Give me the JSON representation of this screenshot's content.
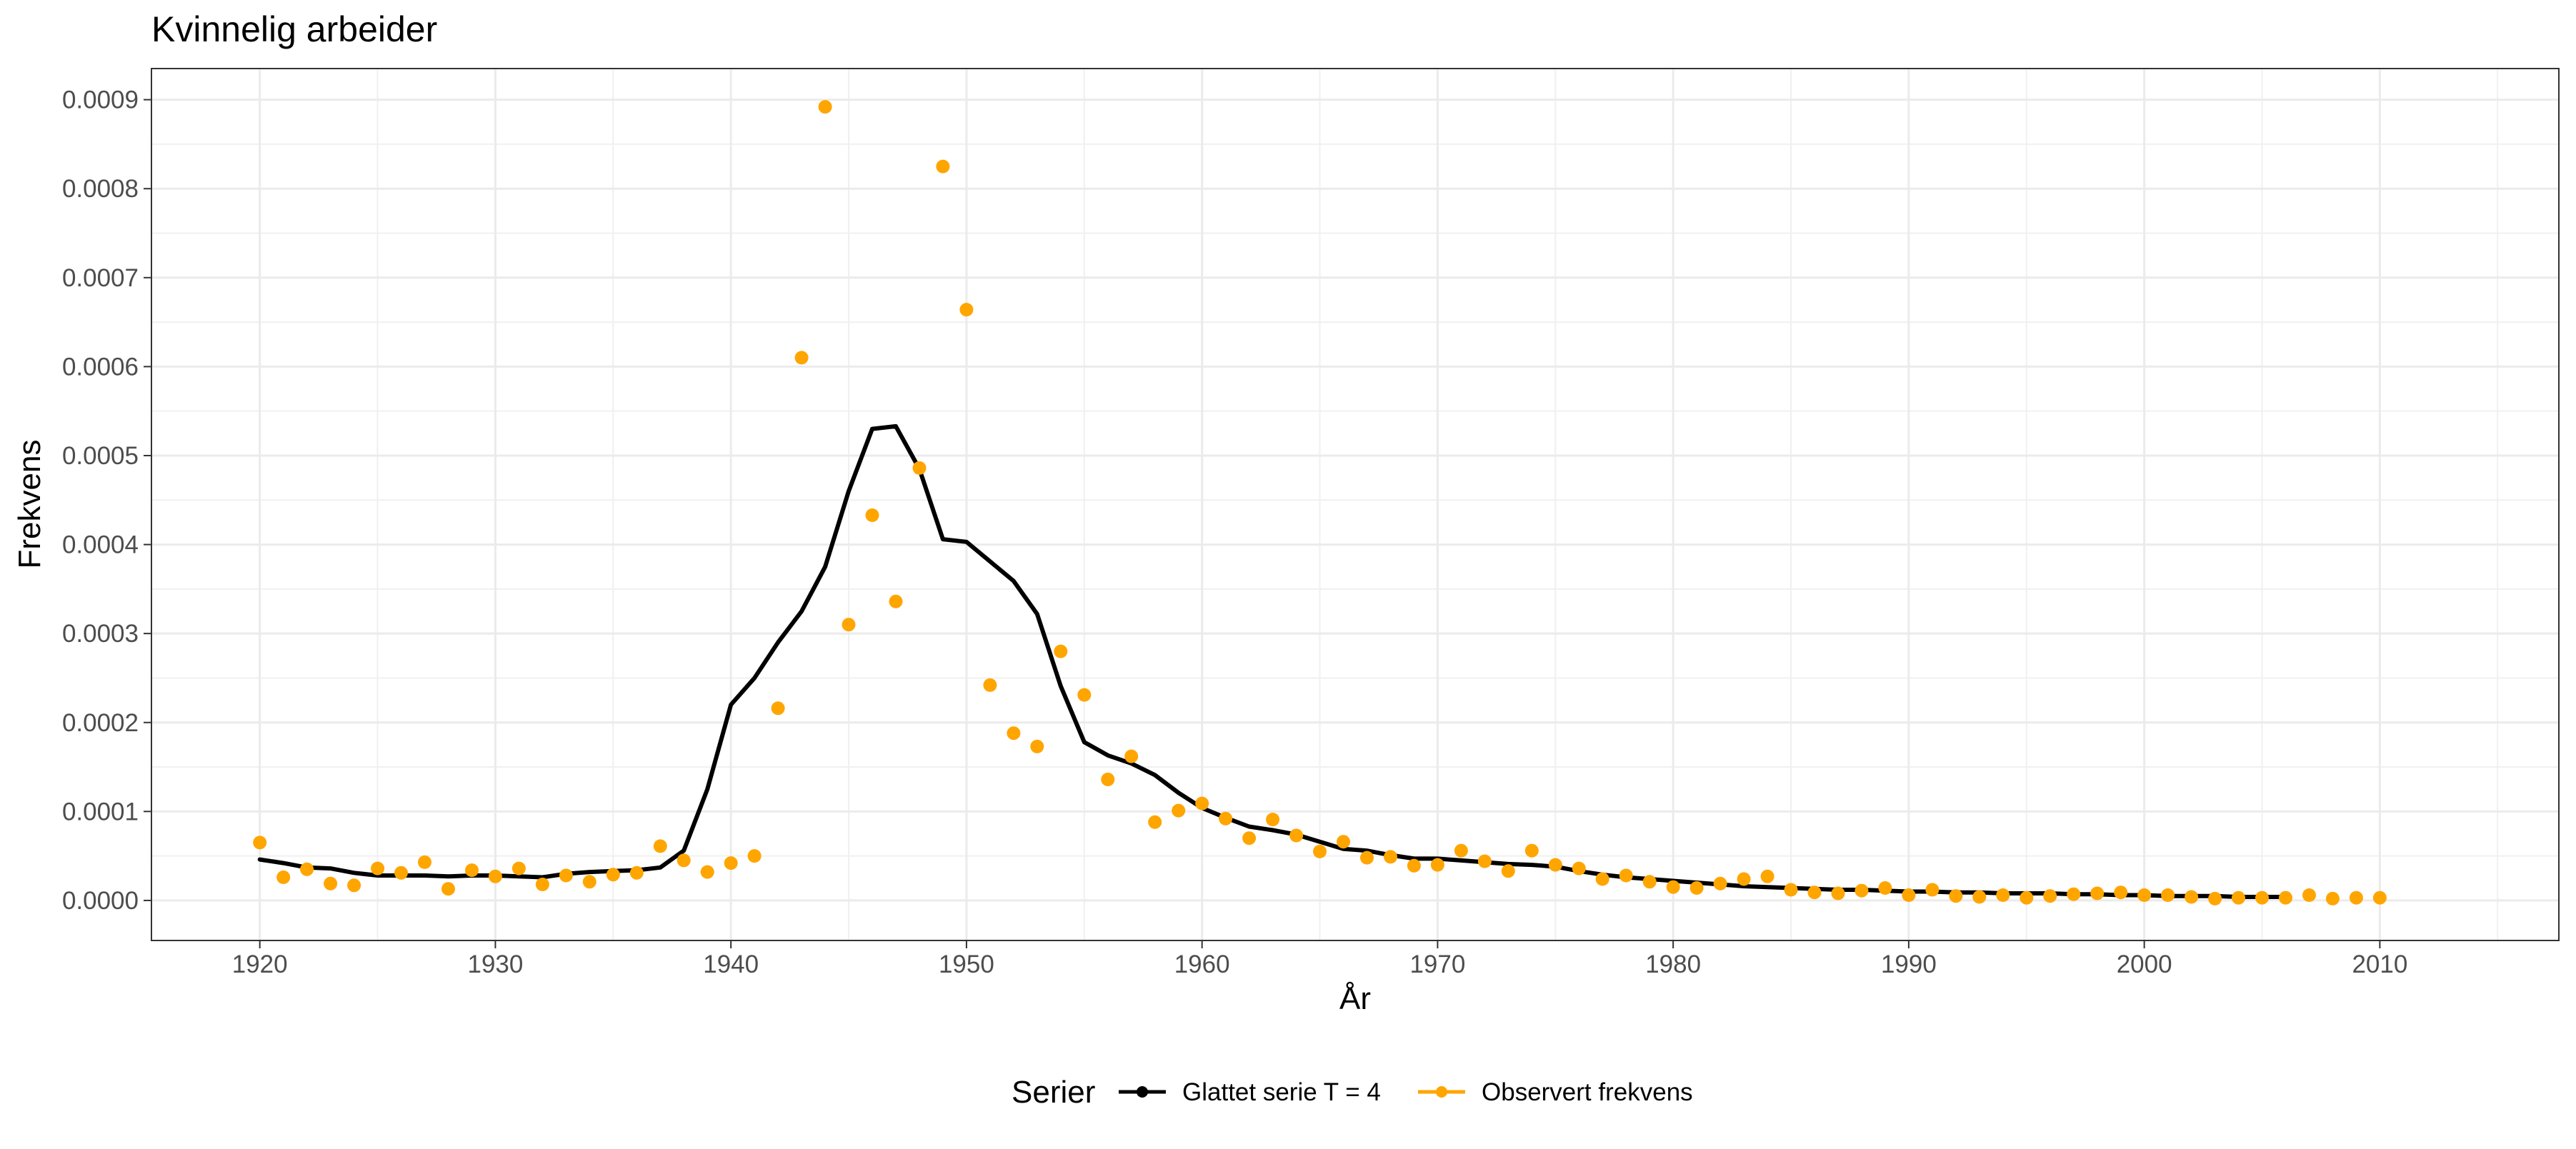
{
  "chart_data": {
    "type": "line",
    "title": "Kvinnelig arbeider",
    "xlabel": "År",
    "ylabel": "Frekvens",
    "xlim": [
      1915.4,
      2017.6
    ],
    "ylim": [
      -4.5e-05,
      0.000935
    ],
    "x_ticks": [
      1920,
      1930,
      1940,
      1950,
      1960,
      1970,
      1980,
      1990,
      2000,
      2010
    ],
    "x_tick_labels": [
      "1920",
      "1930",
      "1940",
      "1950",
      "1960",
      "1970",
      "1980",
      "1990",
      "2000",
      "2010"
    ],
    "y_ticks": [
      0,
      0.0001,
      0.0002,
      0.0003,
      0.0004,
      0.0005,
      0.0006,
      0.0007,
      0.0008,
      0.0009
    ],
    "y_tick_labels": [
      "0.0000",
      "0.0001",
      "0.0002",
      "0.0003",
      "0.0004",
      "0.0005",
      "0.0006",
      "0.0007",
      "0.0008",
      "0.0009"
    ],
    "grid": true,
    "legend": {
      "title": "Serier",
      "position": "bottom"
    },
    "series": [
      {
        "name": "Glattet serie T  = 4",
        "kind": "line",
        "color": "#000000",
        "x": [
          1920,
          1921,
          1922,
          1923,
          1924,
          1925,
          1926,
          1927,
          1928,
          1929,
          1930,
          1931,
          1932,
          1933,
          1934,
          1935,
          1936,
          1937,
          1938,
          1939,
          1940,
          1941,
          1942,
          1943,
          1944,
          1945,
          1946,
          1947,
          1948,
          1949,
          1950,
          1951,
          1952,
          1953,
          1954,
          1955,
          1956,
          1957,
          1958,
          1959,
          1960,
          1961,
          1962,
          1963,
          1964,
          1965,
          1966,
          1967,
          1968,
          1969,
          1970,
          1971,
          1972,
          1973,
          1974,
          1975,
          1976,
          1977,
          1978,
          1979,
          1980,
          1981,
          1982,
          1983,
          1984,
          1985,
          1986,
          1987,
          1988,
          1989,
          1990,
          1991,
          1992,
          1993,
          1994,
          1995,
          1996,
          1997,
          1998,
          1999,
          2000,
          2001,
          2002,
          2003,
          2004,
          2005,
          2006
        ],
        "y": [
          4.6e-05,
          4.2e-05,
          3.7e-05,
          3.6e-05,
          3.1e-05,
          2.8e-05,
          2.8e-05,
          2.8e-05,
          2.7e-05,
          2.8e-05,
          2.8e-05,
          2.7e-05,
          2.6e-05,
          3e-05,
          3.2e-05,
          3.3e-05,
          3.4e-05,
          3.7e-05,
          5.6e-05,
          0.000125,
          0.00022,
          0.00025,
          0.00029,
          0.000325,
          0.000375,
          0.00046,
          0.00053,
          0.000533,
          0.000485,
          0.000406,
          0.000403,
          0.000381,
          0.000359,
          0.000322,
          0.000241,
          0.000178,
          0.000163,
          0.000154,
          0.000141,
          0.000121,
          0.000104,
          9.3e-05,
          8.3e-05,
          7.9e-05,
          7.4e-05,
          6.6e-05,
          5.8e-05,
          5.6e-05,
          5.1e-05,
          4.7e-05,
          4.7e-05,
          4.5e-05,
          4.3e-05,
          4.1e-05,
          4e-05,
          3.8e-05,
          3.3e-05,
          2.9e-05,
          2.6e-05,
          2.4e-05,
          2.2e-05,
          2e-05,
          1.8e-05,
          1.6e-05,
          1.5e-05,
          1.4e-05,
          1.3e-05,
          1.2e-05,
          1.2e-05,
          1.1e-05,
          1e-05,
          1e-05,
          9e-06,
          9e-06,
          8e-06,
          8e-06,
          8e-06,
          7e-06,
          7e-06,
          6e-06,
          6e-06,
          5e-06,
          5e-06,
          5e-06,
          4e-06,
          4e-06,
          4e-06
        ]
      },
      {
        "name": "Observert frekvens",
        "kind": "points",
        "color": "#FFA500",
        "x": [
          1920,
          1921,
          1922,
          1923,
          1924,
          1925,
          1926,
          1927,
          1928,
          1929,
          1930,
          1931,
          1932,
          1933,
          1934,
          1935,
          1936,
          1937,
          1938,
          1939,
          1940,
          1941,
          1942,
          1943,
          1944,
          1945,
          1946,
          1947,
          1948,
          1949,
          1950,
          1951,
          1952,
          1953,
          1954,
          1955,
          1956,
          1957,
          1958,
          1959,
          1960,
          1961,
          1962,
          1963,
          1964,
          1965,
          1966,
          1967,
          1968,
          1969,
          1970,
          1971,
          1972,
          1973,
          1974,
          1975,
          1976,
          1977,
          1978,
          1979,
          1980,
          1981,
          1982,
          1983,
          1984,
          1985,
          1986,
          1987,
          1988,
          1989,
          1990,
          1991,
          1992,
          1993,
          1994,
          1995,
          1996,
          1997,
          1998,
          1999,
          2000,
          2001,
          2002,
          2003,
          2004,
          2005,
          2006,
          2007,
          2008,
          2009,
          2010
        ],
        "y": [
          6.5e-05,
          2.6e-05,
          3.5e-05,
          1.9e-05,
          1.7e-05,
          3.6e-05,
          3.1e-05,
          4.3e-05,
          1.3e-05,
          3.4e-05,
          2.7e-05,
          3.6e-05,
          1.8e-05,
          2.8e-05,
          2.1e-05,
          2.9e-05,
          3.1e-05,
          6.1e-05,
          4.5e-05,
          3.2e-05,
          4.2e-05,
          5e-05,
          0.000216,
          0.00061,
          0.000892,
          0.00031,
          0.000433,
          0.000336,
          0.000486,
          0.000825,
          0.000664,
          0.000242,
          0.000188,
          0.000173,
          0.00028,
          0.000231,
          0.000136,
          0.000162,
          8.8e-05,
          0.000101,
          0.000109,
          9.2e-05,
          7e-05,
          9.1e-05,
          7.3e-05,
          5.5e-05,
          6.6e-05,
          4.8e-05,
          4.9e-05,
          3.9e-05,
          4e-05,
          5.6e-05,
          4.4e-05,
          3.3e-05,
          5.6e-05,
          4e-05,
          3.6e-05,
          2.4e-05,
          2.8e-05,
          2.1e-05,
          1.5e-05,
          1.4e-05,
          1.9e-05,
          2.4e-05,
          2.7e-05,
          1.2e-05,
          9e-06,
          8e-06,
          1.1e-05,
          1.4e-05,
          6e-06,
          1.2e-05,
          5e-06,
          4e-06,
          6e-06,
          3e-06,
          5e-06,
          7e-06,
          8e-06,
          9e-06,
          6e-06,
          6e-06,
          4e-06,
          2e-06,
          3e-06,
          3e-06,
          3e-06,
          6e-06,
          2e-06,
          3e-06,
          3e-06
        ]
      }
    ]
  }
}
